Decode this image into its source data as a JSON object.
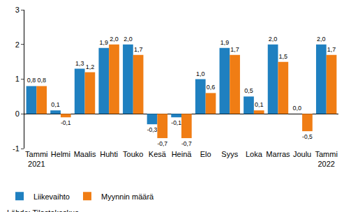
{
  "chart_data": {
    "type": "bar",
    "categories": [
      "Tammi\n2021",
      "Helmi",
      "Maalis",
      "Huhti",
      "Touko",
      "Kesä",
      "Heinä",
      "Elo",
      "Syys",
      "Loka",
      "Marras",
      "Joulu",
      "Tammi\n2022"
    ],
    "series": [
      {
        "name": "Liikevaihto",
        "color": "#1f80c0",
        "values": [
          0.8,
          0.1,
          1.3,
          1.9,
          2.0,
          -0.3,
          -0.1,
          1.0,
          1.9,
          0.5,
          2.0,
          0.0,
          2.0
        ],
        "value_labels": [
          "0,8",
          "0,1",
          "1,3",
          "1,9",
          "2,0",
          "-0,3",
          "-0,1",
          "1,0",
          "1,9",
          "0,5",
          "2,0",
          "0,0",
          "2,0"
        ]
      },
      {
        "name": "Myynnin määrä",
        "color": "#f07d14",
        "values": [
          0.8,
          -0.1,
          1.2,
          2.0,
          1.7,
          -0.7,
          -0.7,
          0.6,
          1.7,
          0.1,
          1.5,
          -0.5,
          1.7
        ],
        "value_labels": [
          "0,8",
          "-0,1",
          "1,2",
          "2,0",
          "1,7",
          "-0,7",
          "-0,7",
          "0,6",
          "1,7",
          "0,1",
          "1,5",
          "-0,5",
          "1,7"
        ]
      }
    ],
    "ylim": [
      -1,
      3
    ],
    "yticks": [
      -1,
      0,
      1,
      2,
      3
    ],
    "grid": false,
    "legend": "bottom left",
    "data_labels": true,
    "annotations": [
      "Lähde: Tilastokeskus"
    ]
  }
}
